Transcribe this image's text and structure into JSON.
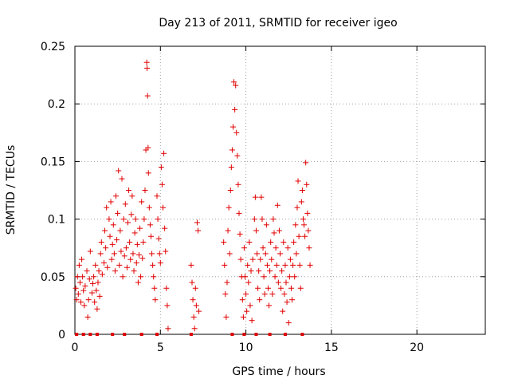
{
  "chart_data": {
    "type": "scatter",
    "title": "Day 213 of 2011, SRMTID for receiver igeo",
    "xlabel": "GPS time / hours",
    "ylabel": "SRMTID / TECUs",
    "xlim": [
      0,
      24
    ],
    "ylim": [
      0,
      0.25
    ],
    "x_ticks": [
      0,
      5,
      10,
      15,
      20
    ],
    "x_tick_labels": [
      "0",
      "5",
      "10",
      "15",
      "20"
    ],
    "y_ticks": [
      0,
      0.05,
      0.1,
      0.15,
      0.2,
      0.25
    ],
    "y_tick_labels": [
      "0",
      "0.05",
      "0.1",
      "0.15",
      "0.2",
      "0.25"
    ],
    "grid": true,
    "marker": "+",
    "color": "#e00000",
    "series": [
      {
        "name": "SRMTID",
        "points": [
          [
            0.05,
            0.04
          ],
          [
            0.1,
            0.03
          ],
          [
            0.15,
            0.05
          ],
          [
            0.2,
            0.035
          ],
          [
            0.25,
            0.06
          ],
          [
            0.3,
            0.045
          ],
          [
            0.35,
            0.028
          ],
          [
            0.4,
            0.065
          ],
          [
            0.45,
            0.05
          ],
          [
            0.5,
            0.038
          ],
          [
            0.55,
            0.025
          ],
          [
            0.6,
            0.042
          ],
          [
            0.7,
            0.055
          ],
          [
            0.75,
            0.015
          ],
          [
            0.8,
            0.03
          ],
          [
            0.85,
            0.048
          ],
          [
            0.9,
            0.072
          ],
          [
            1.0,
            0.036
          ],
          [
            1.05,
            0.044
          ],
          [
            1.1,
            0.05
          ],
          [
            1.15,
            0.028
          ],
          [
            1.2,
            0.06
          ],
          [
            1.25,
            0.038
          ],
          [
            1.3,
            0.022
          ],
          [
            1.35,
            0.045
          ],
          [
            1.4,
            0.055
          ],
          [
            1.45,
            0.033
          ],
          [
            1.5,
            0.07
          ],
          [
            1.55,
            0.08
          ],
          [
            1.6,
            0.052
          ],
          [
            1.7,
            0.062
          ],
          [
            1.75,
            0.09
          ],
          [
            1.8,
            0.075
          ],
          [
            1.85,
            0.11
          ],
          [
            1.9,
            0.058
          ],
          [
            2.0,
            0.1
          ],
          [
            2.05,
            0.085
          ],
          [
            2.1,
            0.115
          ],
          [
            2.15,
            0.065
          ],
          [
            2.2,
            0.078
          ],
          [
            2.25,
            0.095
          ],
          [
            2.3,
            0.07
          ],
          [
            2.35,
            0.055
          ],
          [
            2.4,
            0.12
          ],
          [
            2.45,
            0.082
          ],
          [
            2.5,
            0.105
          ],
          [
            2.55,
            0.142
          ],
          [
            2.6,
            0.06
          ],
          [
            2.65,
            0.09
          ],
          [
            2.7,
            0.072
          ],
          [
            2.75,
            0.135
          ],
          [
            2.8,
            0.05
          ],
          [
            2.85,
            0.1
          ],
          [
            2.9,
            0.068
          ],
          [
            2.95,
            0.113
          ],
          [
            3.0,
            0.075
          ],
          [
            3.05,
            0.058
          ],
          [
            3.1,
            0.097
          ],
          [
            3.15,
            0.125
          ],
          [
            3.2,
            0.08
          ],
          [
            3.25,
            0.065
          ],
          [
            3.3,
            0.104
          ],
          [
            3.35,
            0.12
          ],
          [
            3.4,
            0.07
          ],
          [
            3.45,
            0.055
          ],
          [
            3.5,
            0.088
          ],
          [
            3.55,
            0.1
          ],
          [
            3.6,
            0.062
          ],
          [
            3.65,
            0.078
          ],
          [
            3.7,
            0.045
          ],
          [
            3.75,
            0.069
          ],
          [
            3.8,
            0.092
          ],
          [
            3.85,
            0.05
          ],
          [
            3.9,
            0.115
          ],
          [
            3.95,
            0.066
          ],
          [
            4.0,
            0.08
          ],
          [
            4.05,
            0.1
          ],
          [
            4.1,
            0.125
          ],
          [
            4.15,
            0.16
          ],
          [
            4.2,
            0.236
          ],
          [
            4.22,
            0.231
          ],
          [
            4.25,
            0.207
          ],
          [
            4.28,
            0.162
          ],
          [
            4.3,
            0.14
          ],
          [
            4.35,
            0.11
          ],
          [
            4.4,
            0.095
          ],
          [
            4.45,
            0.085
          ],
          [
            4.5,
            0.07
          ],
          [
            4.55,
            0.06
          ],
          [
            4.6,
            0.05
          ],
          [
            4.65,
            0.04
          ],
          [
            4.7,
            0.03
          ],
          [
            4.8,
            0.12
          ],
          [
            4.85,
            0.1
          ],
          [
            4.9,
            0.083
          ],
          [
            4.95,
            0.07
          ],
          [
            5.0,
            0.062
          ],
          [
            5.05,
            0.145
          ],
          [
            5.1,
            0.13
          ],
          [
            5.15,
            0.11
          ],
          [
            5.2,
            0.157
          ],
          [
            5.25,
            0.092
          ],
          [
            5.3,
            0.072
          ],
          [
            5.35,
            0.04
          ],
          [
            5.4,
            0.025
          ],
          [
            5.45,
            0.005
          ],
          [
            6.8,
            0.06
          ],
          [
            6.85,
            0.045
          ],
          [
            6.9,
            0.03
          ],
          [
            6.95,
            0.015
          ],
          [
            7.0,
            0.005
          ],
          [
            7.05,
            0.04
          ],
          [
            7.1,
            0.025
          ],
          [
            7.15,
            0.097
          ],
          [
            7.2,
            0.09
          ],
          [
            7.25,
            0.02
          ],
          [
            8.7,
            0.08
          ],
          [
            8.75,
            0.06
          ],
          [
            8.8,
            0.035
          ],
          [
            8.85,
            0.015
          ],
          [
            8.9,
            0.045
          ],
          [
            8.95,
            0.09
          ],
          [
            9.0,
            0.11
          ],
          [
            9.05,
            0.07
          ],
          [
            9.1,
            0.125
          ],
          [
            9.15,
            0.145
          ],
          [
            9.2,
            0.16
          ],
          [
            9.25,
            0.18
          ],
          [
            9.3,
            0.219
          ],
          [
            9.35,
            0.195
          ],
          [
            9.4,
            0.216
          ],
          [
            9.45,
            0.175
          ],
          [
            9.5,
            0.155
          ],
          [
            9.55,
            0.13
          ],
          [
            9.6,
            0.105
          ],
          [
            9.65,
            0.087
          ],
          [
            9.7,
            0.065
          ],
          [
            9.75,
            0.05
          ],
          [
            9.8,
            0.03
          ],
          [
            9.85,
            0.015
          ],
          [
            9.9,
            0.075
          ],
          [
            9.95,
            0.05
          ],
          [
            10.0,
            0.035
          ],
          [
            10.05,
            0.02
          ],
          [
            10.1,
            0.06
          ],
          [
            10.15,
            0.045
          ],
          [
            10.2,
            0.08
          ],
          [
            10.25,
            0.025
          ],
          [
            10.3,
            0.055
          ],
          [
            10.35,
            0.012
          ],
          [
            10.4,
            0.065
          ],
          [
            10.5,
            0.1
          ],
          [
            10.55,
            0.119
          ],
          [
            10.6,
            0.09
          ],
          [
            10.65,
            0.07
          ],
          [
            10.7,
            0.04
          ],
          [
            10.75,
            0.055
          ],
          [
            10.8,
            0.03
          ],
          [
            10.85,
            0.065
          ],
          [
            10.9,
            0.119
          ],
          [
            10.95,
            0.1
          ],
          [
            11.0,
            0.075
          ],
          [
            11.05,
            0.05
          ],
          [
            11.1,
            0.035
          ],
          [
            11.15,
            0.07
          ],
          [
            11.2,
            0.095
          ],
          [
            11.25,
            0.06
          ],
          [
            11.3,
            0.04
          ],
          [
            11.35,
            0.025
          ],
          [
            11.4,
            0.055
          ],
          [
            11.45,
            0.08
          ],
          [
            11.5,
            0.065
          ],
          [
            11.55,
            0.035
          ],
          [
            11.6,
            0.1
          ],
          [
            11.65,
            0.088
          ],
          [
            11.7,
            0.05
          ],
          [
            11.75,
            0.075
          ],
          [
            11.8,
            0.06
          ],
          [
            11.85,
            0.112
          ],
          [
            11.9,
            0.045
          ],
          [
            11.95,
            0.09
          ],
          [
            12.0,
            0.07
          ],
          [
            12.05,
            0.04
          ],
          [
            12.1,
            0.055
          ],
          [
            12.15,
            0.02
          ],
          [
            12.2,
            0.08
          ],
          [
            12.25,
            0.035
          ],
          [
            12.3,
            0.06
          ],
          [
            12.35,
            0.045
          ],
          [
            12.4,
            0.028
          ],
          [
            12.45,
            0.075
          ],
          [
            12.5,
            0.01
          ],
          [
            12.55,
            0.05
          ],
          [
            12.6,
            0.065
          ],
          [
            12.65,
            0.04
          ],
          [
            12.7,
            0.03
          ],
          [
            12.75,
            0.06
          ],
          [
            12.8,
            0.08
          ],
          [
            12.85,
            0.05
          ],
          [
            12.9,
            0.095
          ],
          [
            12.95,
            0.07
          ],
          [
            13.0,
            0.11
          ],
          [
            13.05,
            0.133
          ],
          [
            13.1,
            0.085
          ],
          [
            13.15,
            0.06
          ],
          [
            13.2,
            0.04
          ],
          [
            13.25,
            0.115
          ],
          [
            13.3,
            0.125
          ],
          [
            13.35,
            0.1
          ],
          [
            13.4,
            0.095
          ],
          [
            13.45,
            0.085
          ],
          [
            13.5,
            0.149
          ],
          [
            13.55,
            0.13
          ],
          [
            13.6,
            0.105
          ],
          [
            13.65,
            0.09
          ],
          [
            13.7,
            0.075
          ],
          [
            13.75,
            0.06
          ]
        ]
      }
    ],
    "baseline_markers_x": [
      0.1,
      0.5,
      0.9,
      1.3,
      2.2,
      2.9,
      3.9,
      4.8,
      6.8,
      9.2,
      9.9,
      10.6,
      11.4,
      12.3,
      13.3
    ]
  }
}
